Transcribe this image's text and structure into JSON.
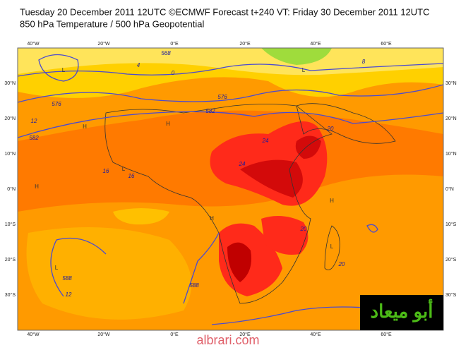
{
  "header": {
    "title": "Tuesday 20 December 2011 12UTC ©ECMWF Forecast t+240 VT: Friday 30 December 2011 12UTC",
    "subtitle": "850 hPa Temperature / 500 hPa Geopotential"
  },
  "map": {
    "longitude_labels": [
      "40°W",
      "20°W",
      "0°E",
      "20°E",
      "40°E",
      "60°E"
    ],
    "latitude_labels": [
      "30°N",
      "20°N",
      "10°N",
      "0°N",
      "10°S",
      "20°S",
      "30°S"
    ],
    "contour_labels": [
      "576",
      "576",
      "582",
      "582",
      "588",
      "588",
      "12",
      "12",
      "16",
      "16",
      "20",
      "20",
      "20",
      "24",
      "24",
      "4",
      "0",
      "8",
      "568"
    ],
    "pressure_centers": [
      "L",
      "L",
      "H",
      "H",
      "L",
      "H",
      "L",
      "H",
      "H",
      "L"
    ]
  },
  "logo": "أبو ميعاد",
  "watermark": "albrari.com"
}
